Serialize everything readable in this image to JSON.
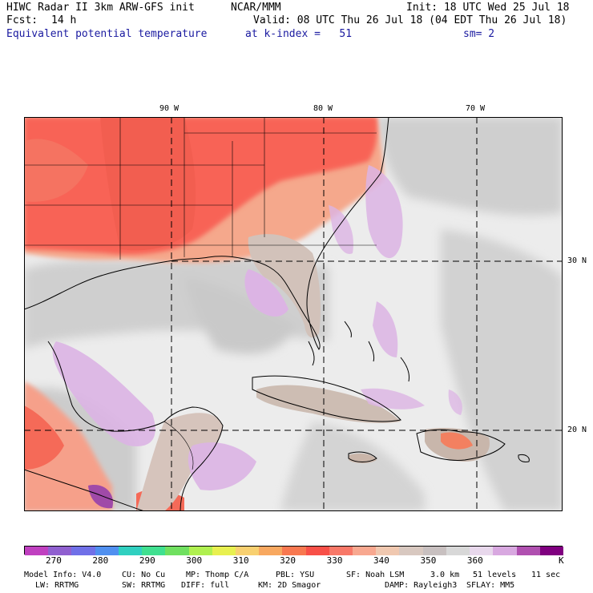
{
  "header": {
    "model": "HIWC Radar II 3km ARW-GFS init",
    "org": "NCAR/MMM",
    "init": "Init: 18 UTC Wed 25 Jul 18",
    "fcst_label": "Fcst:",
    "fcst_value": "14 h",
    "valid": "Valid: 08 UTC Thu 26 Jul 18 (04 EDT Thu 26 Jul 18)",
    "field": "Equivalent potential temperature",
    "level": "at k-index =   51",
    "smooth": "sm= 2"
  },
  "map": {
    "lon_labels": [
      "90 W",
      "80 W",
      "70 W"
    ],
    "lat_labels": [
      "30 N",
      "20 N"
    ]
  },
  "colorbar": {
    "colors": [
      "#c040c0",
      "#9060d0",
      "#7070e8",
      "#5090f0",
      "#30d0c0",
      "#40e090",
      "#70e060",
      "#b0f050",
      "#e8f050",
      "#f8d070",
      "#f8a860",
      "#f87850",
      "#f85048",
      "#f87868",
      "#f8a890",
      "#f0c8b0",
      "#d8c8c0",
      "#c8c0c0",
      "#d8d8d8",
      "#e8d8ec",
      "#d8a8e0",
      "#b050b0",
      "#800080"
    ],
    "tick_labels": [
      "270",
      "280",
      "290",
      "300",
      "310",
      "320",
      "330",
      "340",
      "350",
      "360",
      "K"
    ]
  },
  "footer": {
    "line1": [
      "Model Info: V4.0",
      "CU: No Cu",
      "MP: Thomp C/A",
      "PBL: YSU",
      "SF: Noah LSM",
      "3.0 km",
      "51 levels",
      "11 sec"
    ],
    "line2": [
      "LW: RRTMG",
      "SW: RRTMG",
      "DIFF: full",
      "KM: 2D Smagor",
      "DAMP: Rayleigh3",
      "SFLAY: MM5"
    ]
  }
}
